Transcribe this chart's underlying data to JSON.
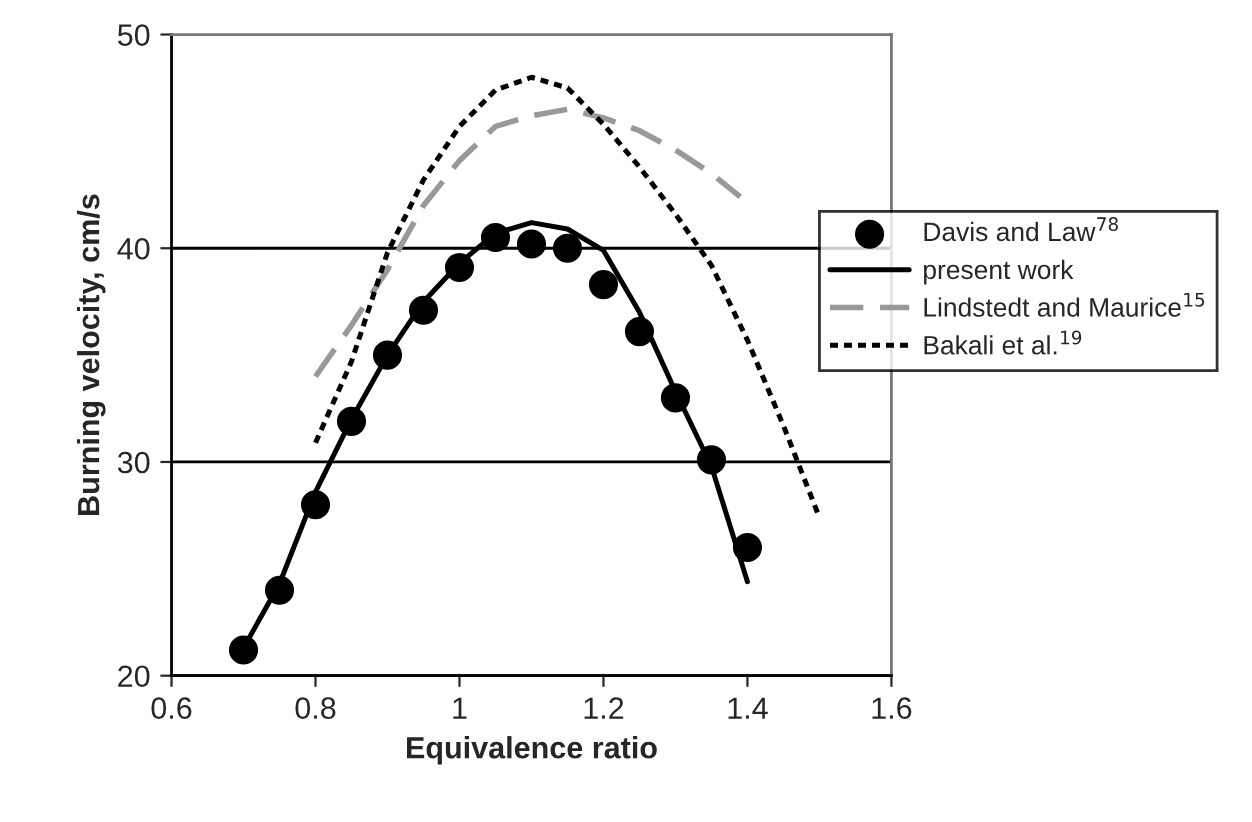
{
  "chart_data": {
    "type": "line",
    "xlabel": "Equivalence ratio",
    "ylabel": "Burning velocity, cm/s",
    "series": [
      {
        "name": "Davis and Law$^{78}$",
        "type": "scatter",
        "marker": "circle",
        "color": "#000000",
        "x": [
          0.7,
          0.75,
          0.8,
          0.85,
          0.9,
          0.95,
          1.0,
          1.05,
          1.1,
          1.15,
          1.2,
          1.25,
          1.3,
          1.35,
          1.4
        ],
        "values": [
          21.2,
          24.0,
          28.0,
          31.9,
          35.0,
          37.1,
          39.1,
          40.5,
          40.2,
          40.0,
          38.3,
          36.1,
          33.0,
          30.1,
          26.0
        ]
      },
      {
        "name": "present work",
        "line_style": "solid",
        "color": "#000000",
        "x": [
          0.7,
          0.75,
          0.8,
          0.85,
          0.9,
          0.95,
          1.0,
          1.05,
          1.1,
          1.15,
          1.2,
          1.25,
          1.3,
          1.35,
          1.4
        ],
        "values": [
          21.3,
          24.3,
          28.6,
          32.0,
          35.0,
          37.5,
          39.3,
          40.7,
          41.2,
          40.9,
          39.9,
          37.0,
          33.3,
          29.8,
          24.4
        ]
      },
      {
        "name": "Lindstedt and Maurice$^{15}$",
        "line_style": "dashed",
        "color": "#999999",
        "x": [
          0.8,
          0.85,
          0.9,
          0.95,
          1.0,
          1.05,
          1.1,
          1.15,
          1.2,
          1.25,
          1.3,
          1.35,
          1.39
        ],
        "values": [
          34.0,
          36.4,
          39.0,
          42.0,
          44.1,
          45.7,
          46.2,
          46.5,
          46.1,
          45.5,
          44.6,
          43.5,
          42.4
        ]
      },
      {
        "name": "Bakali et al.$^{19}$",
        "line_style": "dotted",
        "color": "#000000",
        "x": [
          0.8,
          0.85,
          0.9,
          0.95,
          1.0,
          1.05,
          1.1,
          1.15,
          1.2,
          1.25,
          1.3,
          1.35,
          1.4,
          1.45,
          1.5
        ],
        "values": [
          30.9,
          34.7,
          39.8,
          43.2,
          45.7,
          47.4,
          48.0,
          47.5,
          45.8,
          43.8,
          41.6,
          39.2,
          35.7,
          31.7,
          27.4
        ]
      }
    ],
    "xlim": [
      0.6,
      1.6
    ],
    "xticks": [
      0.6,
      0.8,
      1,
      1.2,
      1.4,
      1.6
    ],
    "ylim": [
      20,
      50
    ],
    "yticks": [
      20,
      30,
      40,
      50
    ],
    "grid": "y",
    "legend": "right"
  }
}
